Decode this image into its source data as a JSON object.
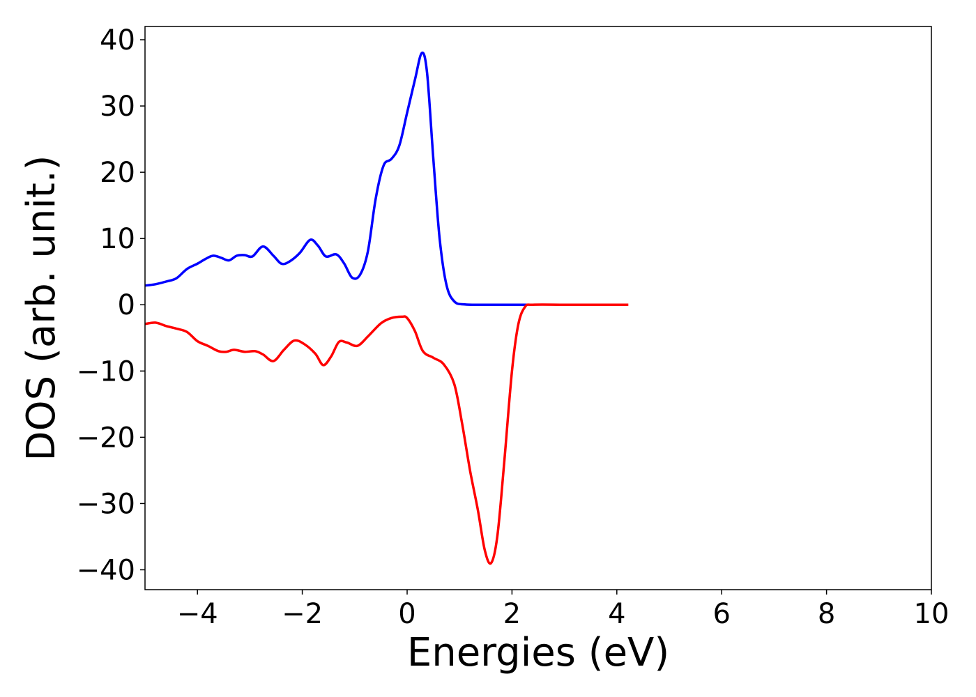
{
  "chart_data": {
    "type": "line",
    "title": "",
    "xlabel": "Energies (eV)",
    "ylabel": "DOS (arb. unit.)",
    "xlim": [
      -5,
      10
    ],
    "ylim": [
      -43,
      42
    ],
    "xticks": [
      -4,
      -2,
      0,
      2,
      4,
      6,
      8,
      10
    ],
    "yticks": [
      -40,
      -30,
      -20,
      -10,
      0,
      10,
      20,
      30,
      40
    ],
    "xtick_labels": [
      "−4",
      "−2",
      "0",
      "2",
      "4",
      "6",
      "8",
      "10"
    ],
    "ytick_labels": [
      "−40",
      "−30",
      "−20",
      "−10",
      "0",
      "10",
      "20",
      "30",
      "40"
    ],
    "grid": false,
    "legend": null,
    "series": [
      {
        "color": "#0000ff",
        "points": [
          [
            -5.0,
            2.9
          ],
          [
            -4.8,
            3.1
          ],
          [
            -4.6,
            3.5
          ],
          [
            -4.4,
            4.0
          ],
          [
            -4.2,
            5.4
          ],
          [
            -4.0,
            6.2
          ],
          [
            -3.85,
            6.9
          ],
          [
            -3.7,
            7.4
          ],
          [
            -3.55,
            7.1
          ],
          [
            -3.4,
            6.7
          ],
          [
            -3.25,
            7.4
          ],
          [
            -3.1,
            7.5
          ],
          [
            -2.95,
            7.3
          ],
          [
            -2.75,
            8.8
          ],
          [
            -2.55,
            7.4
          ],
          [
            -2.4,
            6.2
          ],
          [
            -2.25,
            6.5
          ],
          [
            -2.05,
            7.8
          ],
          [
            -1.85,
            9.8
          ],
          [
            -1.7,
            8.9
          ],
          [
            -1.55,
            7.3
          ],
          [
            -1.35,
            7.6
          ],
          [
            -1.2,
            6.2
          ],
          [
            -1.05,
            4.1
          ],
          [
            -0.9,
            4.5
          ],
          [
            -0.75,
            8.0
          ],
          [
            -0.6,
            16.0
          ],
          [
            -0.45,
            21.0
          ],
          [
            -0.3,
            22.0
          ],
          [
            -0.15,
            24.0
          ],
          [
            0.0,
            29.0
          ],
          [
            0.15,
            34.0
          ],
          [
            0.28,
            38.0
          ],
          [
            0.38,
            35.0
          ],
          [
            0.5,
            22.0
          ],
          [
            0.62,
            10.0
          ],
          [
            0.75,
            3.0
          ],
          [
            0.9,
            0.5
          ],
          [
            1.1,
            0.05
          ],
          [
            1.5,
            0.0
          ],
          [
            2.0,
            0.0
          ],
          [
            2.3,
            0.0
          ]
        ]
      },
      {
        "color": "#ff0000",
        "points": [
          [
            -5.0,
            -2.9
          ],
          [
            -4.8,
            -2.7
          ],
          [
            -4.6,
            -3.2
          ],
          [
            -4.4,
            -3.6
          ],
          [
            -4.2,
            -4.1
          ],
          [
            -4.0,
            -5.5
          ],
          [
            -3.8,
            -6.2
          ],
          [
            -3.6,
            -7.0
          ],
          [
            -3.45,
            -7.1
          ],
          [
            -3.3,
            -6.8
          ],
          [
            -3.1,
            -7.1
          ],
          [
            -2.9,
            -7.0
          ],
          [
            -2.75,
            -7.5
          ],
          [
            -2.55,
            -8.5
          ],
          [
            -2.35,
            -6.8
          ],
          [
            -2.15,
            -5.4
          ],
          [
            -1.95,
            -6.0
          ],
          [
            -1.75,
            -7.4
          ],
          [
            -1.6,
            -9.1
          ],
          [
            -1.45,
            -7.8
          ],
          [
            -1.3,
            -5.6
          ],
          [
            -1.15,
            -5.7
          ],
          [
            -0.95,
            -6.2
          ],
          [
            -0.75,
            -4.8
          ],
          [
            -0.5,
            -2.8
          ],
          [
            -0.3,
            -2.0
          ],
          [
            -0.1,
            -1.8
          ],
          [
            0.0,
            -2.0
          ],
          [
            0.15,
            -4.0
          ],
          [
            0.3,
            -7.0
          ],
          [
            0.5,
            -8.0
          ],
          [
            0.7,
            -9.0
          ],
          [
            0.9,
            -12.0
          ],
          [
            1.05,
            -18.0
          ],
          [
            1.2,
            -25.0
          ],
          [
            1.35,
            -31.0
          ],
          [
            1.48,
            -37.0
          ],
          [
            1.6,
            -39.0
          ],
          [
            1.72,
            -35.0
          ],
          [
            1.85,
            -24.0
          ],
          [
            2.0,
            -10.0
          ],
          [
            2.12,
            -3.0
          ],
          [
            2.25,
            -0.3
          ],
          [
            2.4,
            0.0
          ],
          [
            3.0,
            0.0
          ],
          [
            3.6,
            0.0
          ],
          [
            4.22,
            0.0
          ]
        ]
      }
    ]
  }
}
